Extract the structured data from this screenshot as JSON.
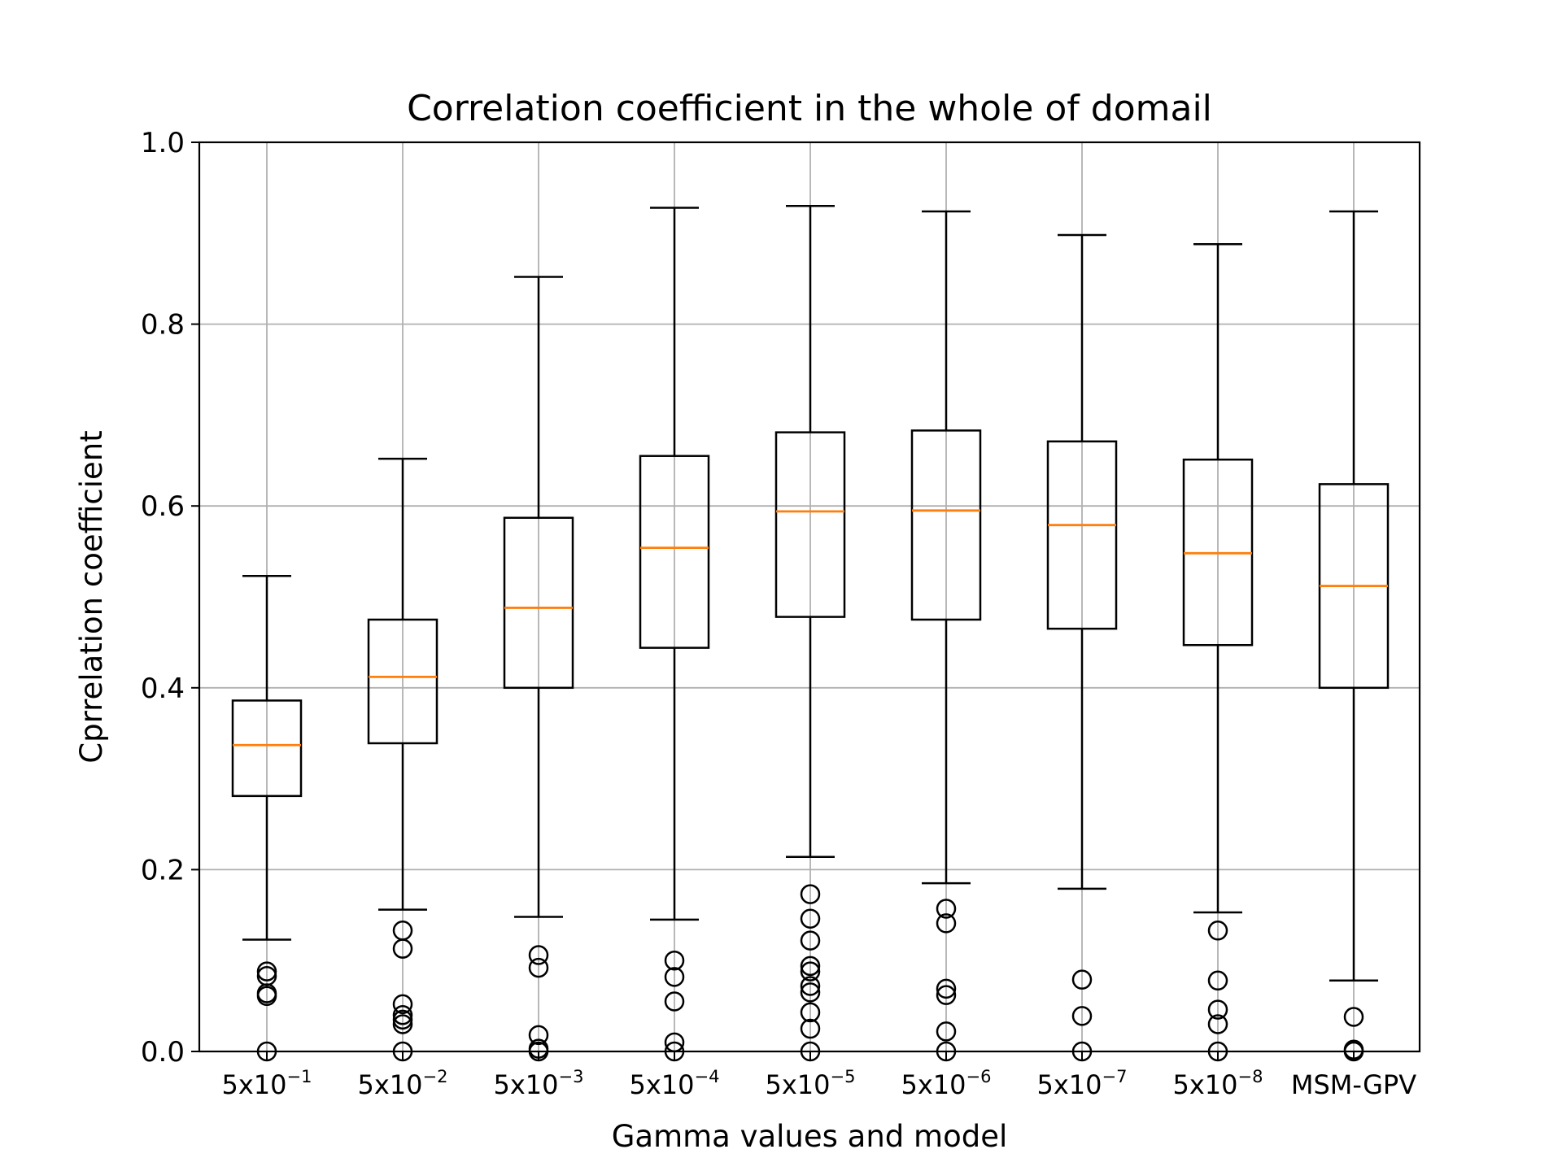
{
  "chart_data": {
    "type": "box",
    "title": "Correlation coefficient in the whole of domail",
    "xlabel": "Gamma values and model",
    "ylabel": "Cprrelation coefficient",
    "ylim": [
      0,
      1
    ],
    "yticks": [
      "0.0",
      "0.2",
      "0.4",
      "0.6",
      "0.8",
      "1.0"
    ],
    "grid": true,
    "categories": [
      {
        "base": "5x10",
        "exp": "−1"
      },
      {
        "base": "5x10",
        "exp": "−2"
      },
      {
        "base": "5x10",
        "exp": "−3"
      },
      {
        "base": "5x10",
        "exp": "−4"
      },
      {
        "base": "5x10",
        "exp": "−5"
      },
      {
        "base": "5x10",
        "exp": "−6"
      },
      {
        "base": "5x10",
        "exp": "−7"
      },
      {
        "base": "5x10",
        "exp": "−8"
      },
      {
        "base": "MSM-GPV",
        "exp": ""
      }
    ],
    "boxes": [
      {
        "whisker_low": 0.123,
        "q1": 0.281,
        "median": 0.337,
        "q3": 0.386,
        "whisker_high": 0.523,
        "outliers": [
          0.088,
          0.083,
          0.064,
          0.061,
          0.0
        ]
      },
      {
        "whisker_low": 0.156,
        "q1": 0.339,
        "median": 0.412,
        "q3": 0.475,
        "whisker_high": 0.652,
        "outliers": [
          0.133,
          0.113,
          0.052,
          0.04,
          0.035,
          0.03,
          0.0
        ]
      },
      {
        "whisker_low": 0.148,
        "q1": 0.4,
        "median": 0.488,
        "q3": 0.587,
        "whisker_high": 0.852,
        "outliers": [
          0.106,
          0.092,
          0.018,
          0.003,
          0.0
        ]
      },
      {
        "whisker_low": 0.145,
        "q1": 0.444,
        "median": 0.554,
        "q3": 0.655,
        "whisker_high": 0.928,
        "outliers": [
          0.1,
          0.082,
          0.055,
          0.01,
          0.0
        ]
      },
      {
        "whisker_low": 0.214,
        "q1": 0.478,
        "median": 0.594,
        "q3": 0.681,
        "whisker_high": 0.93,
        "outliers": [
          0.173,
          0.146,
          0.122,
          0.094,
          0.088,
          0.072,
          0.065,
          0.043,
          0.025,
          0.0
        ]
      },
      {
        "whisker_low": 0.185,
        "q1": 0.475,
        "median": 0.595,
        "q3": 0.683,
        "whisker_high": 0.924,
        "outliers": [
          0.157,
          0.141,
          0.069,
          0.062,
          0.022,
          0.0
        ]
      },
      {
        "whisker_low": 0.179,
        "q1": 0.465,
        "median": 0.579,
        "q3": 0.671,
        "whisker_high": 0.898,
        "outliers": [
          0.079,
          0.039,
          0.0
        ]
      },
      {
        "whisker_low": 0.153,
        "q1": 0.447,
        "median": 0.548,
        "q3": 0.651,
        "whisker_high": 0.888,
        "outliers": [
          0.133,
          0.078,
          0.046,
          0.03,
          0.0
        ]
      },
      {
        "whisker_low": 0.078,
        "q1": 0.4,
        "median": 0.512,
        "q3": 0.624,
        "whisker_high": 0.924,
        "outliers": [
          0.038,
          0.002,
          0.0
        ]
      }
    ],
    "colors": {
      "box": "#000000",
      "median": "#ff7f0e",
      "grid": "#b0b0b0",
      "frame": "#000000"
    }
  }
}
